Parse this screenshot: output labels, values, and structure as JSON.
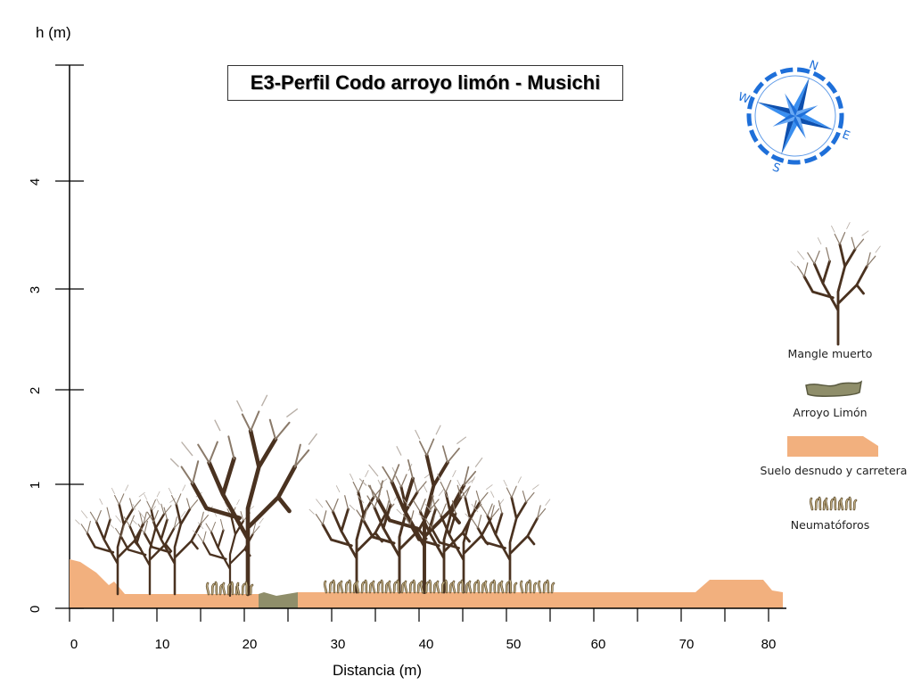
{
  "title": "E3-Perfil Codo arroyo limón - Musichi",
  "axes": {
    "y_label": "h (m)",
    "x_label": "Distancia (m)",
    "y_ticks": [
      "0",
      "1",
      "2",
      "3",
      "4"
    ],
    "x_ticks": [
      "0",
      "10",
      "20",
      "30",
      "40",
      "50",
      "60",
      "70",
      "80"
    ]
  },
  "compass": {
    "letters": [
      "N",
      "E",
      "S",
      "W"
    ],
    "icon": "compass-rose-icon",
    "color": "#1e6fd9"
  },
  "legend": {
    "dead_mangrove": "Mangle muerto",
    "stream": "Arroyo Limón",
    "bare_soil": "Suelo desnudo y carretera",
    "pneumatophores": "Neumatóforos"
  },
  "colors": {
    "soil": "#f2b07e",
    "stream": "#8f8e6a",
    "trunk": "#4a3220",
    "pneumatophore": "#c9b48a"
  }
}
